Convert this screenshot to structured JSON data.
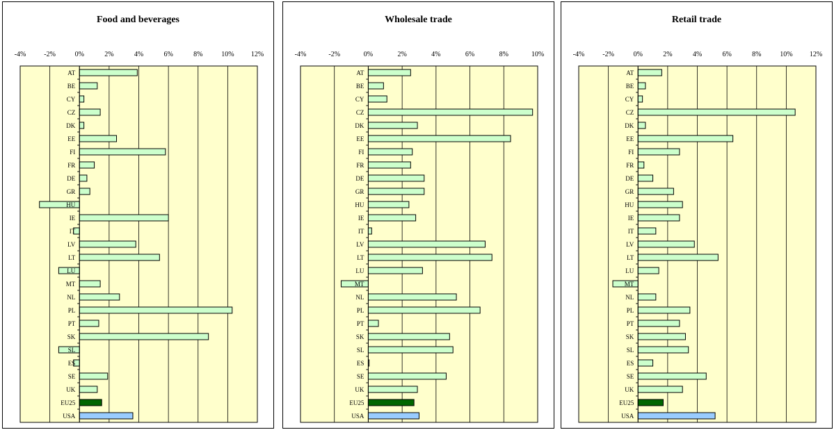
{
  "chart_data": [
    {
      "type": "bar",
      "orientation": "horizontal",
      "title": "Food and beverages",
      "xlim": [
        -4,
        12
      ],
      "xticks": [
        "-4%",
        "-2%",
        "0%",
        "2%",
        "4%",
        "6%",
        "8%",
        "10%",
        "12%"
      ],
      "grid": true,
      "categories": [
        "AT",
        "BE",
        "CY",
        "CZ",
        "DK",
        "EE",
        "FI",
        "FR",
        "DE",
        "GR",
        "HU",
        "IE",
        "IT",
        "LV",
        "LT",
        "LU",
        "MT",
        "NL",
        "PL",
        "PT",
        "SK",
        "SL",
        "ES",
        "SE",
        "UK",
        "EU25",
        "USA"
      ],
      "values": [
        3.9,
        1.2,
        0.3,
        1.4,
        0.3,
        2.5,
        5.8,
        1.0,
        0.5,
        0.7,
        -2.7,
        6.0,
        -0.4,
        3.8,
        5.4,
        -1.4,
        1.4,
        2.7,
        10.3,
        1.3,
        8.7,
        -1.4,
        -0.4,
        1.9,
        1.2,
        1.5,
        3.6
      ]
    },
    {
      "type": "bar",
      "orientation": "horizontal",
      "title": "Wholesale trade",
      "xlim": [
        -4,
        10
      ],
      "xticks": [
        "-4%",
        "-2%",
        "0%",
        "2%",
        "4%",
        "6%",
        "8%",
        "10%"
      ],
      "grid": true,
      "categories": [
        "AT",
        "BE",
        "CY",
        "CZ",
        "DK",
        "EE",
        "FI",
        "FR",
        "DE",
        "GR",
        "HU",
        "IE",
        "IT",
        "LV",
        "LT",
        "LU",
        "MT",
        "NL",
        "PL",
        "PT",
        "SK",
        "SL",
        "ES",
        "SE",
        "UK",
        "EU25",
        "USA"
      ],
      "values": [
        2.5,
        0.9,
        1.1,
        9.7,
        2.9,
        8.4,
        2.6,
        2.5,
        3.3,
        3.3,
        2.4,
        2.8,
        0.2,
        6.9,
        7.3,
        3.2,
        -1.6,
        5.2,
        6.6,
        0.6,
        4.8,
        5.0,
        0.05,
        4.6,
        2.9,
        2.7,
        3.0
      ]
    },
    {
      "type": "bar",
      "orientation": "horizontal",
      "title": "Retail trade",
      "xlim": [
        -4,
        12
      ],
      "xticks": [
        "-4%",
        "-2%",
        "0%",
        "2%",
        "4%",
        "6%",
        "8%",
        "10%",
        "12%"
      ],
      "grid": true,
      "categories": [
        "AT",
        "BE",
        "CY",
        "CZ",
        "DK",
        "EE",
        "FI",
        "FR",
        "DE",
        "GR",
        "HU",
        "IE",
        "IT",
        "LV",
        "LT",
        "LU",
        "MT",
        "NL",
        "PL",
        "PT",
        "SK",
        "SL",
        "ES",
        "SE",
        "UK",
        "EU25",
        "USA"
      ],
      "values": [
        1.6,
        0.5,
        0.3,
        10.6,
        0.5,
        6.4,
        2.8,
        0.4,
        1.0,
        2.4,
        3.0,
        2.8,
        1.2,
        3.8,
        5.4,
        1.4,
        -1.7,
        1.2,
        3.5,
        2.8,
        3.2,
        3.4,
        1.0,
        4.6,
        3.0,
        1.7,
        5.2
      ]
    }
  ],
  "colors": {
    "plot_background": "#ffffcc",
    "bar_default": "#ccffcc",
    "bar_eu25": "#006600",
    "bar_usa": "#99ccff",
    "grid": "#000000"
  }
}
